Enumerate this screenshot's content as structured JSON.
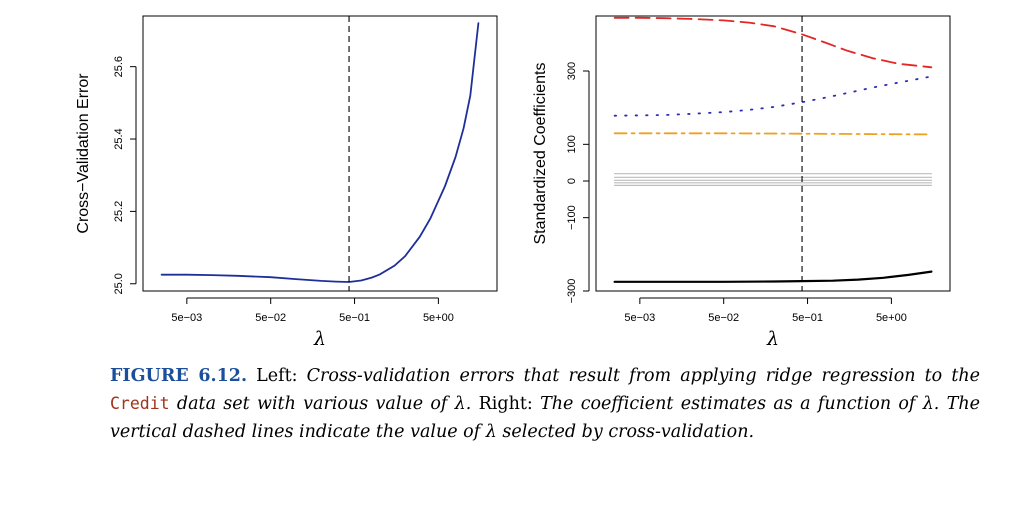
{
  "chart_data": [
    {
      "type": "line",
      "xscale": "log10",
      "xlim": [
        0.0015,
        25
      ],
      "ylim": [
        24.98,
        25.74
      ],
      "xlabel": "λ",
      "ylabel": "Cross−Validation Error",
      "xticks": [
        {
          "value": 0.005,
          "label": "5e−03"
        },
        {
          "value": 0.05,
          "label": "5e−02"
        },
        {
          "value": 0.5,
          "label": "5e−01"
        },
        {
          "value": 5,
          "label": "5e+00"
        }
      ],
      "yticks": [
        {
          "value": 25.0,
          "label": "25.0"
        },
        {
          "value": 25.2,
          "label": "25.2"
        },
        {
          "value": 25.4,
          "label": "25.4"
        },
        {
          "value": 25.6,
          "label": "25.6"
        }
      ],
      "vline": 0.43,
      "series": [
        {
          "color": "#1f2f9a",
          "dash": "solid",
          "x": [
            0.0025,
            0.005,
            0.01,
            0.02,
            0.05,
            0.1,
            0.2,
            0.3,
            0.43,
            0.6,
            0.8,
            1.0,
            1.5,
            2.0,
            3.0,
            4.0,
            6.0,
            8.0,
            10.0,
            12.0,
            15.0
          ],
          "y": [
            25.025,
            25.025,
            25.024,
            25.022,
            25.018,
            25.013,
            25.008,
            25.006,
            25.005,
            25.009,
            25.017,
            25.026,
            25.05,
            25.076,
            25.13,
            25.18,
            25.27,
            25.35,
            25.43,
            25.52,
            25.72
          ]
        }
      ]
    },
    {
      "type": "line",
      "xscale": "log10",
      "xlim": [
        0.0015,
        25
      ],
      "ylim": [
        -300,
        450
      ],
      "xlabel": "λ",
      "ylabel": "Standardized Coefficients",
      "xticks": [
        {
          "value": 0.005,
          "label": "5e−03"
        },
        {
          "value": 0.05,
          "label": "5e−02"
        },
        {
          "value": 0.5,
          "label": "5e−01"
        },
        {
          "value": 5,
          "label": "5e+00"
        }
      ],
      "yticks": [
        {
          "value": -300,
          "label": "−300"
        },
        {
          "value": -100,
          "label": "−100"
        },
        {
          "value": 0,
          "label": "0"
        },
        {
          "value": 100,
          "label": "100"
        },
        {
          "value": 300,
          "label": "300"
        }
      ],
      "vline": 0.43,
      "series": [
        {
          "color": "#e32626",
          "dash": "long-dash",
          "x": [
            0.0025,
            0.005,
            0.01,
            0.02,
            0.05,
            0.1,
            0.2,
            0.43,
            0.8,
            1.5,
            3.0,
            6.0,
            15.0
          ],
          "y": [
            445,
            445,
            444,
            442,
            438,
            432,
            422,
            400,
            378,
            355,
            335,
            320,
            310
          ]
        },
        {
          "color": "#2b2bbf",
          "dash": "dotted",
          "x": [
            0.0025,
            0.005,
            0.01,
            0.02,
            0.05,
            0.1,
            0.2,
            0.43,
            0.8,
            1.5,
            3.0,
            6.0,
            15.0
          ],
          "y": [
            178,
            179,
            180,
            183,
            188,
            194,
            202,
            215,
            227,
            240,
            255,
            268,
            285
          ]
        },
        {
          "color": "#f0a020",
          "dash": "dash-dot",
          "x": [
            0.0025,
            0.05,
            0.43,
            3.0,
            15.0
          ],
          "y": [
            130,
            130,
            129,
            128,
            127
          ]
        },
        {
          "color": "#bdbdbd",
          "dash": "solid",
          "x": [
            0.0025,
            15.0
          ],
          "y": [
            20,
            20
          ]
        },
        {
          "color": "#bdbdbd",
          "dash": "solid",
          "x": [
            0.0025,
            15.0
          ],
          "y": [
            10,
            10
          ]
        },
        {
          "color": "#bdbdbd",
          "dash": "solid",
          "x": [
            0.0025,
            15.0
          ],
          "y": [
            2,
            2
          ]
        },
        {
          "color": "#bdbdbd",
          "dash": "solid",
          "x": [
            0.0025,
            15.0
          ],
          "y": [
            -5,
            -5
          ]
        },
        {
          "color": "#bdbdbd",
          "dash": "solid",
          "x": [
            0.0025,
            15.0
          ],
          "y": [
            -12,
            -12
          ]
        },
        {
          "color": "#000000",
          "dash": "solid",
          "x": [
            0.0025,
            0.01,
            0.05,
            0.2,
            0.43,
            1.0,
            2.0,
            4.0,
            8.0,
            15.0
          ],
          "y": [
            -275,
            -275,
            -275,
            -274,
            -273,
            -272,
            -269,
            -264,
            -256,
            -247
          ]
        }
      ]
    }
  ],
  "caption": {
    "label": "FIGURE 6.12.",
    "part1": "Left:",
    "part2": "Cross-validation errors that result from applying ridge regression to the",
    "code": "Credit",
    "part3": "data set with various value of λ.",
    "part4": "Right:",
    "part5": "The coefficient estimates as a function of λ. The vertical dashed lines indicate the value of λ selected by cross-validation."
  }
}
